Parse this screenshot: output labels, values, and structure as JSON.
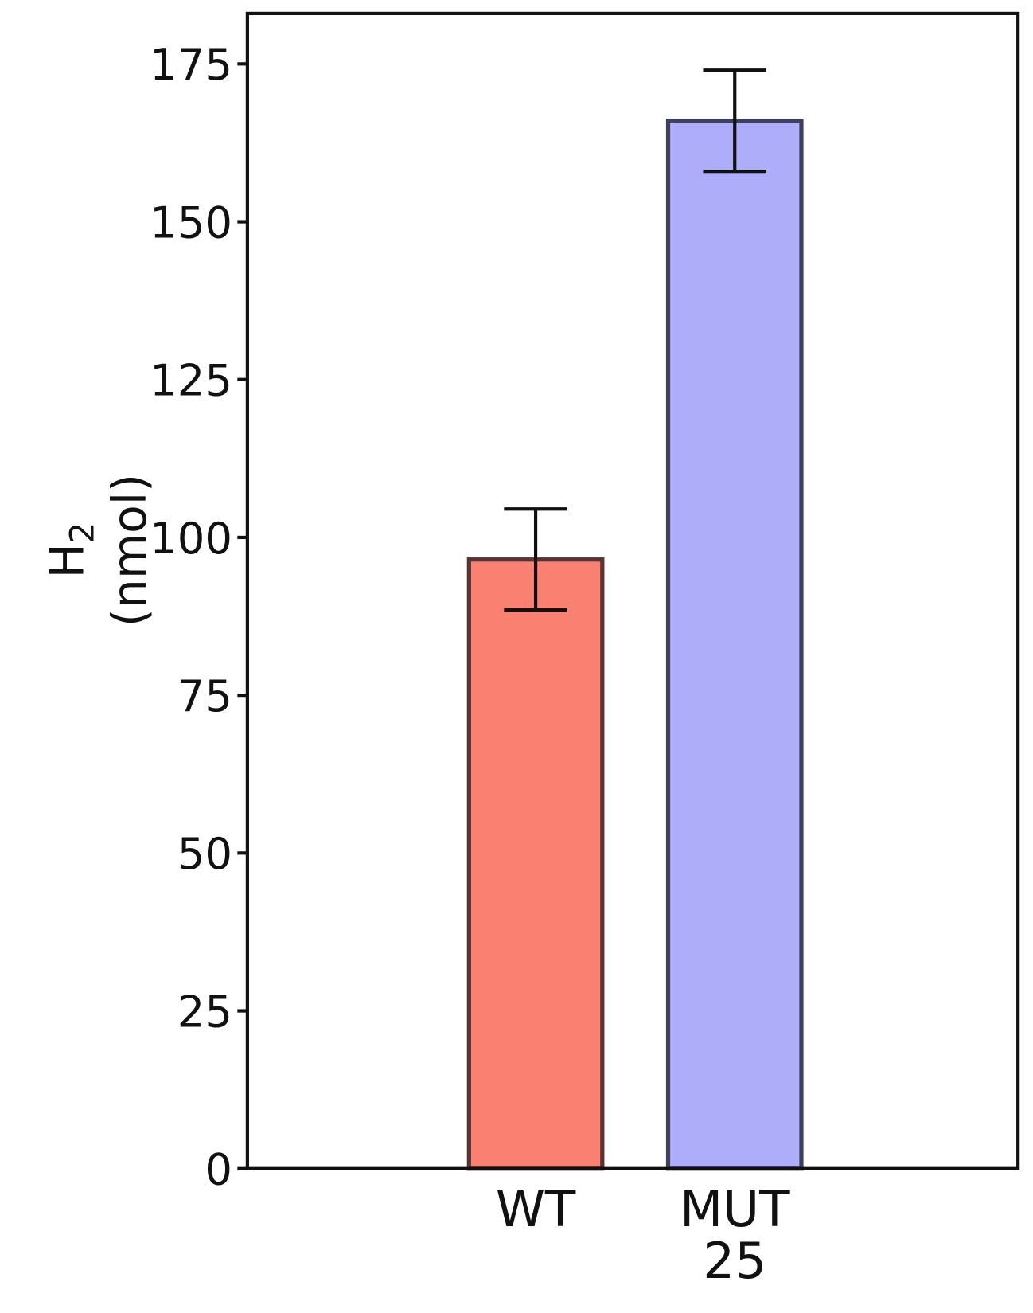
{
  "chart_data": {
    "type": "bar",
    "ylabel": "H",
    "ylabel_subscript": "2",
    "ylabel_unit": "(nmol)",
    "categories": [
      "WT",
      "MUT 25"
    ],
    "values": [
      96.5,
      166
    ],
    "errors": [
      8,
      8
    ],
    "colors": [
      "#fa8072",
      "#adadf9"
    ],
    "edge_colors": [
      "#5a3232",
      "#3f3f5e"
    ],
    "ylim": [
      0,
      183
    ],
    "yticks": [
      0,
      25,
      50,
      75,
      100,
      125,
      150,
      175
    ]
  }
}
